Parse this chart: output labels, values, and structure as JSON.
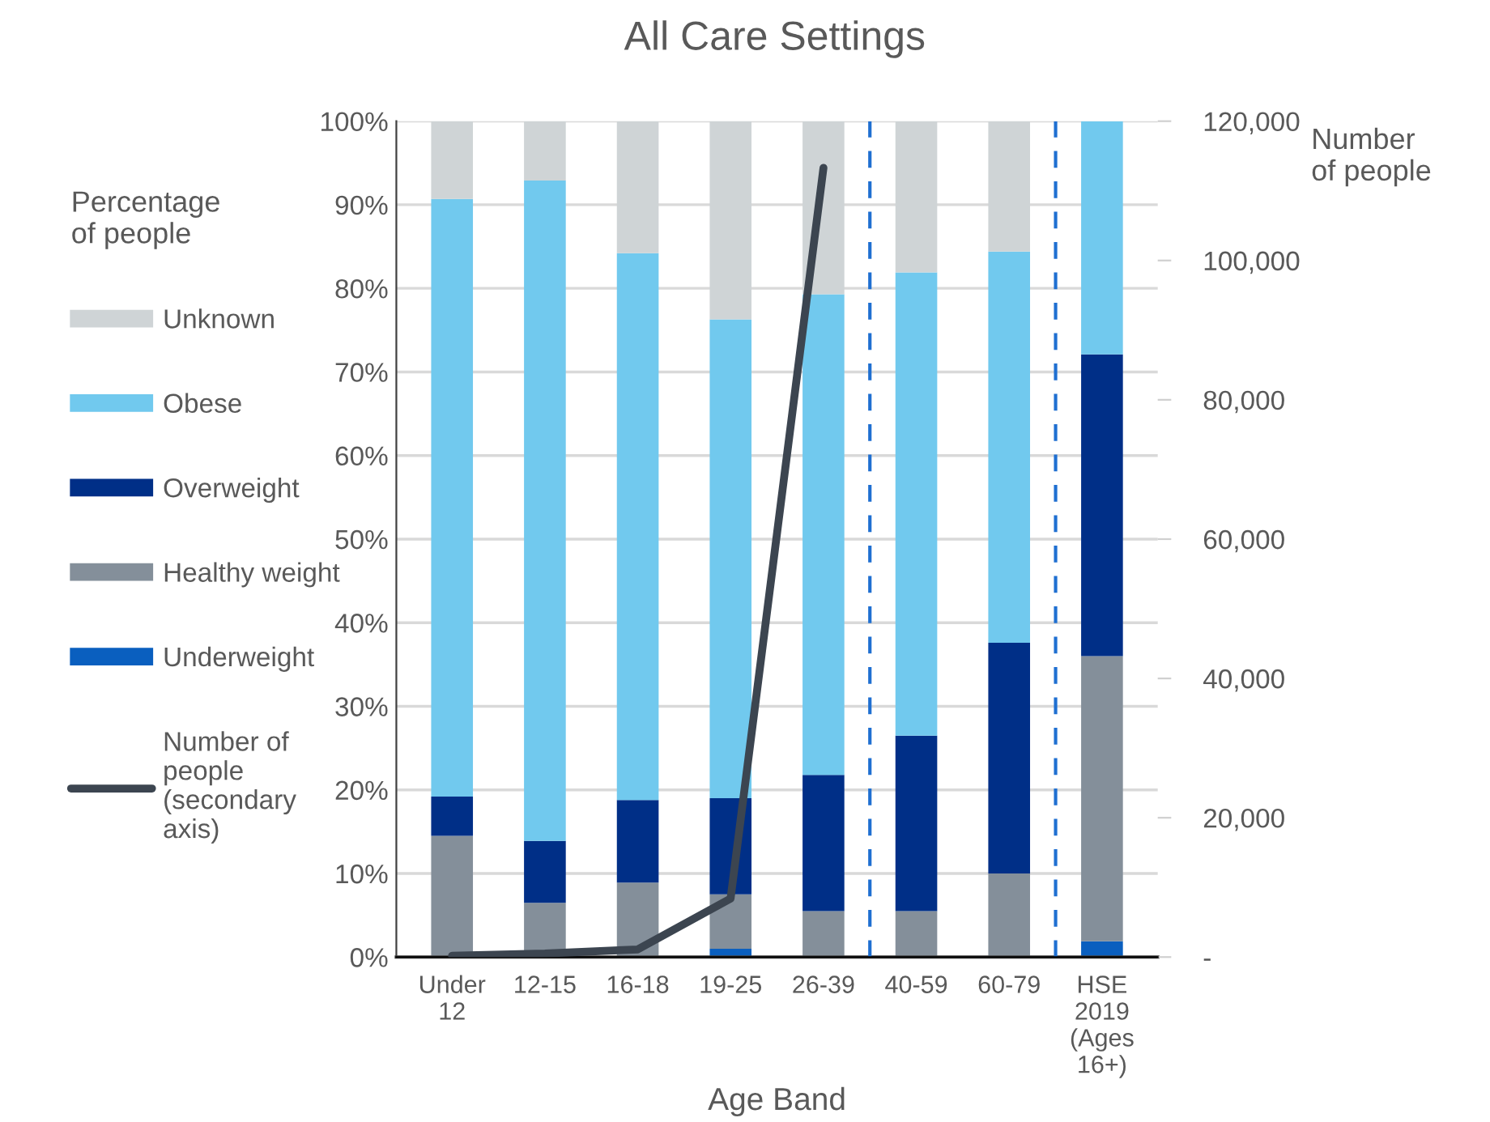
{
  "chart_data": {
    "type": "bar",
    "title": "All Care Settings",
    "xlabel": "Age Band",
    "y2label": "Number of people",
    "legend_title": "Percentage of people",
    "categories": [
      "Under\n12",
      "12-15",
      "16-18",
      "19-25",
      "26-39",
      "40-59",
      "60-79",
      "HSE\n2019\n(Ages\n16+)"
    ],
    "stacked": true,
    "grid": "y",
    "legend": "left",
    "series": [
      {
        "name": "Underweight",
        "color": "#0a5fbf",
        "values": [
          null,
          null,
          null,
          1.0,
          null,
          0,
          null,
          1.9
        ]
      },
      {
        "name": "Healthy weight",
        "color": "#848f9a",
        "values": [
          14.5,
          6.5,
          8.9,
          6.5,
          5.5,
          5.5,
          10.0,
          34.1
        ]
      },
      {
        "name": "Overweight",
        "color": "#002f87",
        "values": [
          4.7,
          7.4,
          9.9,
          11.5,
          16.3,
          21.0,
          27.6,
          36.1
        ]
      },
      {
        "name": "Obese",
        "color": "#71c9ee",
        "values": [
          71.5,
          79.0,
          65.4,
          57.3,
          57.5,
          55.4,
          46.8,
          27.9
        ]
      },
      {
        "name": "Unknown",
        "color": "#cfd4d6",
        "values": [
          9.3,
          7.1,
          15.8,
          23.7,
          20.7,
          18.1,
          15.6,
          0
        ]
      },
      {
        "name": "Number of\npeople\n(secondary\naxis)",
        "type": "line",
        "axis": "y2",
        "color": "#3c4550",
        "values": [
          200,
          500,
          1100,
          8400,
          113300,
          null,
          null,
          null
        ]
      }
    ],
    "ylim": [
      0,
      100
    ],
    "yticks": [
      {
        "value": 0,
        "label": "0%"
      },
      {
        "value": 10,
        "label": "10%"
      },
      {
        "value": 20,
        "label": "20%"
      },
      {
        "value": 30,
        "label": "30%"
      },
      {
        "value": 40,
        "label": "40%"
      },
      {
        "value": 50,
        "label": "50%"
      },
      {
        "value": 60,
        "label": "60%"
      },
      {
        "value": 70,
        "label": "70%"
      },
      {
        "value": 80,
        "label": "80%"
      },
      {
        "value": 90,
        "label": "90%"
      },
      {
        "value": 100,
        "label": "100%"
      }
    ],
    "y2lim": [
      0,
      120000
    ],
    "y2ticks": [
      {
        "value": 0,
        "label": "-"
      },
      {
        "value": 20000,
        "label": "20,000"
      },
      {
        "value": 40000,
        "label": "40,000"
      },
      {
        "value": 60000,
        "label": "60,000"
      },
      {
        "value": 80000,
        "label": "80,000"
      },
      {
        "value": 100000,
        "label": "100,000"
      },
      {
        "value": 120000,
        "label": "120,000"
      }
    ]
  }
}
